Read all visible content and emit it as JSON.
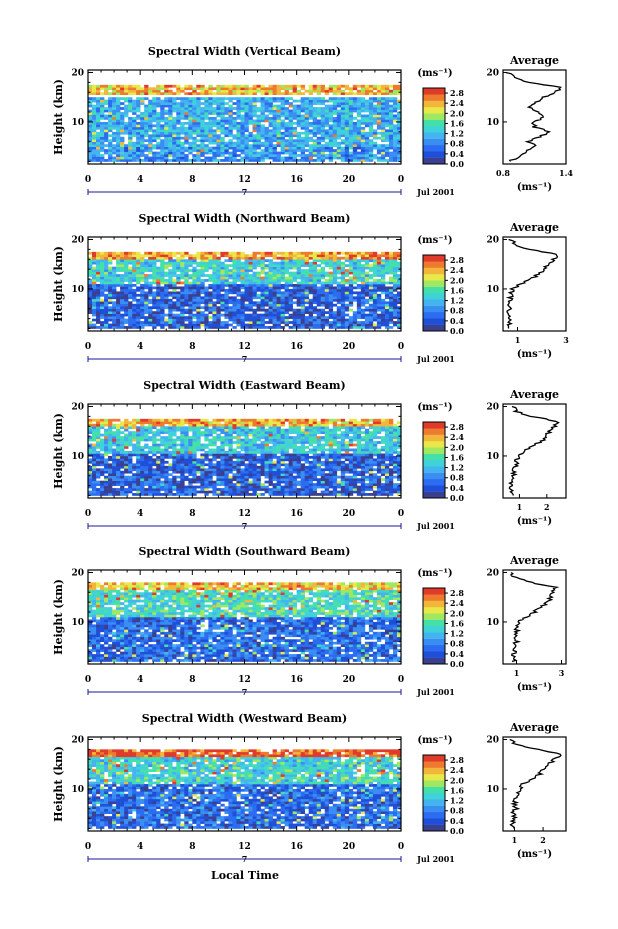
{
  "figure": {
    "x_axis_label": "Local Time",
    "x_ticks": [
      "0",
      "4",
      "8",
      "12",
      "16",
      "20",
      "0"
    ],
    "day_marker": "7",
    "date_label": "Jul 2001",
    "y_axis_label": "Height (km)",
    "y_ticks": [
      "20",
      "10"
    ],
    "colorbar_unit": "(ms⁻¹)",
    "colorbar_ticks": [
      "2.8",
      "2.4",
      "2.0",
      "1.6",
      "1.2",
      "0.8",
      "0.4",
      "0.0"
    ],
    "average_title": "Average",
    "average_unit": "(ms⁻¹)"
  },
  "colors": {
    "colormap": [
      "#3b3f8f",
      "#1f4fd6",
      "#2b6cf0",
      "#3a8ef2",
      "#44b4f0",
      "#3fd2d8",
      "#44e0a8",
      "#9fe860",
      "#e8e84a",
      "#f2b73a",
      "#ee7a2e",
      "#e03a2a"
    ],
    "axis_marker": "#1a1a9a"
  },
  "chart_data": [
    {
      "type": "heatmap",
      "title": "Spectral Width (Vertical Beam)",
      "xlabel": "",
      "ylabel": "Height (km)",
      "xlim": [
        0,
        24
      ],
      "ylim": [
        1.5,
        20.5
      ],
      "zlim": [
        0.0,
        3.0
      ],
      "layers": [
        {
          "h": [
            15.5,
            17.5
          ],
          "v": 2.3
        },
        {
          "h": [
            10,
            15
          ],
          "v": 1.1
        },
        {
          "h": [
            5,
            10
          ],
          "v": 1.1
        },
        {
          "h": [
            2,
            5
          ],
          "v": 0.9
        }
      ],
      "average": {
        "xlim": [
          0.8,
          1.4
        ],
        "xticks": [
          "0.8",
          "1.4"
        ],
        "h": [
          2,
          3,
          4,
          5,
          6,
          7,
          8,
          9,
          10,
          11,
          12,
          13,
          14,
          15,
          16,
          17,
          18,
          19,
          20
        ],
        "v": [
          0.86,
          0.95,
          1.02,
          1.1,
          1.05,
          1.15,
          1.25,
          1.1,
          1.08,
          1.2,
          1.15,
          1.05,
          1.12,
          1.18,
          1.3,
          1.35,
          1.05,
          0.92,
          0.85
        ]
      }
    },
    {
      "type": "heatmap",
      "title": "Spectral Width (Northward Beam)",
      "xlabel": "",
      "ylabel": "Height (km)",
      "xlim": [
        0,
        24
      ],
      "ylim": [
        1.5,
        20.5
      ],
      "zlim": [
        0.0,
        3.0
      ],
      "layers": [
        {
          "h": [
            16,
            17.5
          ],
          "v": 2.5
        },
        {
          "h": [
            11,
            16
          ],
          "v": 1.4
        },
        {
          "h": [
            2,
            11
          ],
          "v": 0.5
        }
      ],
      "average": {
        "xlim": [
          0.4,
          3.0
        ],
        "xticks": [
          "1",
          "3"
        ],
        "h": [
          2,
          3,
          4,
          5,
          6,
          7,
          8,
          9,
          10,
          11,
          12,
          13,
          14,
          15,
          16,
          17,
          18,
          19,
          20
        ],
        "v": [
          0.7,
          0.65,
          0.72,
          0.6,
          0.68,
          0.62,
          0.7,
          0.75,
          0.8,
          1.1,
          1.5,
          1.9,
          2.1,
          2.3,
          2.5,
          2.6,
          1.5,
          0.9,
          0.7
        ]
      }
    },
    {
      "type": "heatmap",
      "title": "Spectral Width (Eastward Beam)",
      "xlabel": "",
      "ylabel": "Height (km)",
      "xlim": [
        0,
        24
      ],
      "ylim": [
        1.5,
        20.5
      ],
      "zlim": [
        0.0,
        3.0
      ],
      "layers": [
        {
          "h": [
            16,
            17.5
          ],
          "v": 2.4
        },
        {
          "h": [
            10.5,
            16
          ],
          "v": 1.3
        },
        {
          "h": [
            2,
            10.5
          ],
          "v": 0.5
        }
      ],
      "average": {
        "xlim": [
          0.4,
          2.7
        ],
        "xticks": [
          "1",
          "2"
        ],
        "h": [
          2,
          3,
          4,
          5,
          6,
          7,
          8,
          9,
          10,
          11,
          12,
          13,
          14,
          15,
          16,
          17,
          18,
          19,
          20
        ],
        "v": [
          0.75,
          0.7,
          0.72,
          0.7,
          0.8,
          0.78,
          0.85,
          0.9,
          1.0,
          1.2,
          1.5,
          1.8,
          2.0,
          2.1,
          2.3,
          2.4,
          1.4,
          0.9,
          0.8
        ]
      }
    },
    {
      "type": "heatmap",
      "title": "Spectral Width (Southward Beam)",
      "xlabel": "",
      "ylabel": "Height (km)",
      "xlim": [
        0,
        24
      ],
      "ylim": [
        1.5,
        20.5
      ],
      "zlim": [
        0.0,
        3.0
      ],
      "layers": [
        {
          "h": [
            16.5,
            17.8
          ],
          "v": 2.3
        },
        {
          "h": [
            11,
            16.5
          ],
          "v": 1.5
        },
        {
          "h": [
            2,
            11
          ],
          "v": 0.6
        }
      ],
      "average": {
        "xlim": [
          0.4,
          3.2
        ],
        "xticks": [
          "1",
          "3"
        ],
        "h": [
          2,
          3,
          4,
          5,
          6,
          7,
          8,
          9,
          10,
          11,
          12,
          13,
          14,
          15,
          16,
          17,
          18,
          19,
          20
        ],
        "v": [
          0.9,
          0.85,
          0.95,
          0.9,
          1.0,
          0.95,
          1.0,
          1.05,
          1.1,
          1.4,
          1.8,
          2.1,
          2.4,
          2.5,
          2.6,
          2.7,
          1.6,
          0.9,
          0.8
        ]
      }
    },
    {
      "type": "heatmap",
      "title": "Spectral Width (Westward Beam)",
      "xlabel": "Local Time",
      "ylabel": "Height (km)",
      "xlim": [
        0,
        24
      ],
      "ylim": [
        1.5,
        20.5
      ],
      "zlim": [
        0.0,
        3.0
      ],
      "layers": [
        {
          "h": [
            16.5,
            17.8
          ],
          "v": 2.8
        },
        {
          "h": [
            11,
            16.5
          ],
          "v": 1.4
        },
        {
          "h": [
            2,
            11
          ],
          "v": 0.6
        }
      ],
      "average": {
        "xlim": [
          0.6,
          2.8
        ],
        "xticks": [
          "1",
          "2"
        ],
        "h": [
          2,
          3,
          4,
          5,
          6,
          7,
          8,
          9,
          10,
          11,
          12,
          13,
          14,
          15,
          16,
          17,
          18,
          19,
          20
        ],
        "v": [
          0.95,
          0.9,
          1.0,
          0.95,
          1.05,
          1.0,
          1.05,
          1.1,
          1.15,
          1.3,
          1.6,
          1.9,
          2.0,
          2.2,
          2.4,
          2.6,
          1.8,
          1.0,
          0.9
        ]
      }
    }
  ]
}
